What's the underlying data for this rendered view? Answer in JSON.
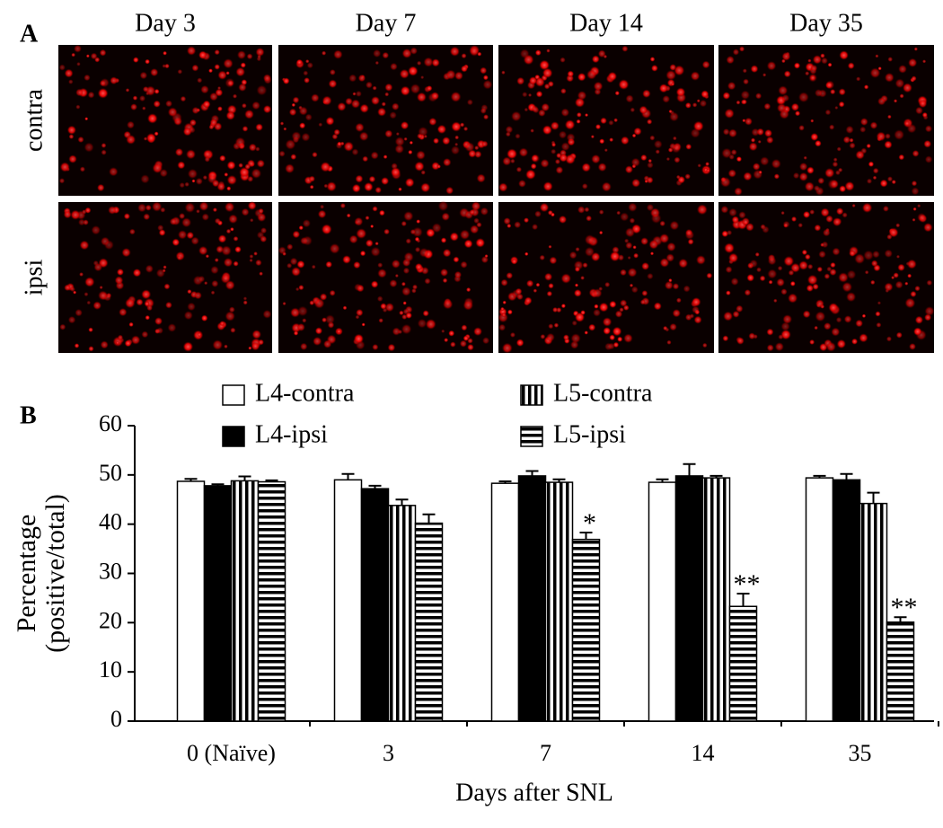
{
  "panel_a": {
    "label": "A",
    "columns": [
      "Day 3",
      "Day 7",
      "Day 14",
      "Day 35"
    ],
    "rows": [
      "contra",
      "ipsi"
    ]
  },
  "chart_data": {
    "type": "bar",
    "panel_label": "B",
    "ylabel": [
      "Percentage",
      "(positive/total)"
    ],
    "xlabel": "Days after SNL",
    "categories": [
      "0 (Naïve)",
      "3",
      "7",
      "14",
      "35"
    ],
    "ylim": [
      0,
      60
    ],
    "yticks": [
      0,
      10,
      20,
      30,
      40,
      50,
      60
    ],
    "series": [
      {
        "name": "L4-contra",
        "color": "#ffffff",
        "pattern": "solid",
        "values": [
          48.7,
          49,
          48.3,
          48.5,
          49.4
        ],
        "errors": [
          0.5,
          1.2,
          0.4,
          0.6,
          0.4
        ]
      },
      {
        "name": "L4-ipsi",
        "color": "#000000",
        "pattern": "solid",
        "values": [
          47.8,
          47.2,
          49.8,
          49.8,
          49
        ],
        "errors": [
          0.3,
          0.6,
          1.0,
          2.4,
          1.2
        ]
      },
      {
        "name": "L5-contra",
        "color": "#000000",
        "pattern": "vertical",
        "values": [
          48.8,
          43.8,
          48.5,
          49.4,
          44.2
        ],
        "errors": [
          0.9,
          1.2,
          0.6,
          0.4,
          2.2
        ]
      },
      {
        "name": "L5-ipsi",
        "color": "#000000",
        "pattern": "horizontal",
        "values": [
          48.6,
          40.2,
          36.9,
          23.3,
          20.1
        ],
        "errors": [
          0.3,
          1.8,
          1.4,
          2.6,
          1.0
        ],
        "significance": [
          null,
          null,
          "*",
          "**",
          "**"
        ]
      }
    ]
  }
}
